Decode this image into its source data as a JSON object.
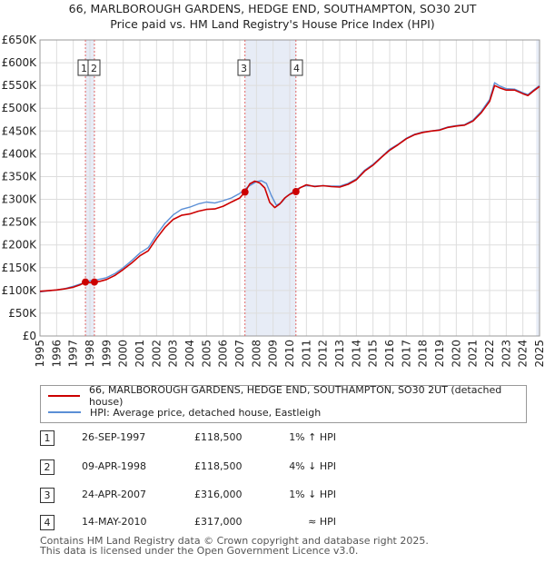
{
  "title_line1": "66, MARLBOROUGH GARDENS, HEDGE END, SOUTHAMPTON, SO30 2UT",
  "title_line2": "Price paid vs. HM Land Registry's House Price Index (HPI)",
  "colors": {
    "property": "#cc0000",
    "hpi": "#5b8fd6",
    "marker_line": "#e06666",
    "shade": "#dfe6f3",
    "grid": "#dddddd"
  },
  "chart_data": {
    "type": "line",
    "xlim": [
      1995,
      2025
    ],
    "ylim": [
      0,
      650000
    ],
    "xticks": [
      1995,
      1996,
      1997,
      1998,
      1999,
      2000,
      2001,
      2002,
      2003,
      2004,
      2005,
      2006,
      2007,
      2008,
      2009,
      2010,
      2011,
      2012,
      2013,
      2014,
      2015,
      2016,
      2017,
      2018,
      2019,
      2020,
      2021,
      2022,
      2023,
      2024,
      2025
    ],
    "ytick_values": [
      0,
      50000,
      100000,
      150000,
      200000,
      250000,
      300000,
      350000,
      400000,
      450000,
      500000,
      550000,
      600000,
      650000
    ],
    "ytick_labels": [
      "£0",
      "£50K",
      "£100K",
      "£150K",
      "£200K",
      "£250K",
      "£300K",
      "£350K",
      "£400K",
      "£450K",
      "£500K",
      "£550K",
      "£600K",
      "£650K"
    ],
    "series": [
      {
        "name": "66, MARLBOROUGH GARDENS, HEDGE END, SOUTHAMPTON, SO30 2UT (detached house)",
        "key": "property",
        "x": [
          1995.0,
          1995.5,
          1996.0,
          1996.5,
          1997.0,
          1997.4,
          1997.73,
          1998.0,
          1998.27,
          1998.6,
          1999.0,
          1999.5,
          2000.0,
          2000.5,
          2001.0,
          2001.5,
          2002.0,
          2002.5,
          2003.0,
          2003.5,
          2004.0,
          2004.5,
          2005.0,
          2005.5,
          2006.0,
          2006.5,
          2007.0,
          2007.31,
          2007.6,
          2007.9,
          2008.2,
          2008.5,
          2008.8,
          2009.1,
          2009.4,
          2009.7,
          2010.0,
          2010.37,
          2010.6,
          2011.0,
          2011.5,
          2012.0,
          2012.5,
          2013.0,
          2013.5,
          2014.0,
          2014.5,
          2015.0,
          2015.5,
          2016.0,
          2016.5,
          2017.0,
          2017.5,
          2018.0,
          2018.5,
          2019.0,
          2019.5,
          2020.0,
          2020.5,
          2021.0,
          2021.5,
          2022.0,
          2022.3,
          2022.6,
          2023.0,
          2023.5,
          2024.0,
          2024.3,
          2024.6,
          2025.0
        ],
        "y": [
          98000,
          99500,
          101000,
          103500,
          107000,
          112000,
          118500,
          117000,
          118500,
          120000,
          124000,
          133000,
          146000,
          160000,
          176000,
          187000,
          214000,
          238000,
          256000,
          265000,
          268000,
          274000,
          278000,
          279000,
          285000,
          294000,
          303000,
          316000,
          334000,
          340000,
          336000,
          325000,
          293000,
          282000,
          290000,
          303000,
          311000,
          317000,
          325000,
          332000,
          328000,
          330000,
          328000,
          327000,
          333000,
          343000,
          362000,
          375000,
          392000,
          408000,
          420000,
          433000,
          442000,
          447000,
          450000,
          452000,
          458000,
          461000,
          463000,
          472000,
          490000,
          515000,
          550000,
          545000,
          540000,
          540000,
          532000,
          528000,
          537000,
          548000
        ]
      },
      {
        "name": "HPI: Average price, detached house, Eastleigh",
        "key": "hpi",
        "x": [
          1995.0,
          1995.5,
          1996.0,
          1996.5,
          1997.0,
          1997.5,
          1998.0,
          1998.5,
          1999.0,
          1999.5,
          2000.0,
          2000.5,
          2001.0,
          2001.5,
          2002.0,
          2002.5,
          2003.0,
          2003.5,
          2004.0,
          2004.5,
          2005.0,
          2005.5,
          2006.0,
          2006.5,
          2007.0,
          2007.5,
          2008.0,
          2008.3,
          2008.6,
          2008.9,
          2009.2,
          2009.5,
          2009.8,
          2010.1,
          2010.4,
          2010.7,
          2011.0,
          2011.5,
          2012.0,
          2012.5,
          2013.0,
          2013.5,
          2014.0,
          2014.5,
          2015.0,
          2015.5,
          2016.0,
          2016.5,
          2017.0,
          2017.5,
          2018.0,
          2018.5,
          2019.0,
          2019.5,
          2020.0,
          2020.5,
          2021.0,
          2021.5,
          2022.0,
          2022.3,
          2022.6,
          2023.0,
          2023.5,
          2024.0,
          2024.3,
          2024.6,
          2025.0
        ],
        "y": [
          97000,
          99000,
          101000,
          104000,
          109000,
          115000,
          121000,
          124000,
          128000,
          137000,
          150000,
          165000,
          182000,
          194000,
          222000,
          247000,
          266000,
          278000,
          283000,
          290000,
          294000,
          292000,
          297000,
          303000,
          313000,
          328000,
          339000,
          341000,
          335000,
          308000,
          287000,
          293000,
          306000,
          314000,
          322000,
          327000,
          330000,
          329000,
          330000,
          329000,
          329000,
          335000,
          345000,
          364000,
          377000,
          393000,
          410000,
          421000,
          434000,
          443000,
          448000,
          450000,
          453000,
          459000,
          462000,
          464000,
          474000,
          493000,
          519000,
          556000,
          549000,
          543000,
          542000,
          534000,
          530000,
          539000,
          550000
        ]
      }
    ],
    "transactions": [
      {
        "label": "1",
        "x": 1997.73,
        "y": 118500
      },
      {
        "label": "2",
        "x": 1998.27,
        "y": 118500
      },
      {
        "label": "3",
        "x": 2007.31,
        "y": 316000
      },
      {
        "label": "4",
        "x": 2010.37,
        "y": 317000
      }
    ],
    "shaded_spans": [
      [
        1997.73,
        1998.27
      ],
      [
        2007.31,
        2010.37
      ],
      [
        2024.8,
        2025.0
      ]
    ]
  },
  "legend": {
    "property": "66, MARLBOROUGH GARDENS, HEDGE END, SOUTHAMPTON, SO30 2UT (detached house)",
    "hpi": "HPI: Average price, detached house, Eastleigh"
  },
  "transactions": [
    {
      "num": "1",
      "date": "26-SEP-1997",
      "price": "£118,500",
      "hpi": "1% ↑ HPI"
    },
    {
      "num": "2",
      "date": "09-APR-1998",
      "price": "£118,500",
      "hpi": "4% ↓ HPI"
    },
    {
      "num": "3",
      "date": "24-APR-2007",
      "price": "£316,000",
      "hpi": "1% ↓ HPI"
    },
    {
      "num": "4",
      "date": "14-MAY-2010",
      "price": "£317,000",
      "hpi": "≈ HPI"
    }
  ],
  "footer_line1": "Contains HM Land Registry data © Crown copyright and database right 2025.",
  "footer_line2": "This data is licensed under the Open Government Licence v3.0."
}
